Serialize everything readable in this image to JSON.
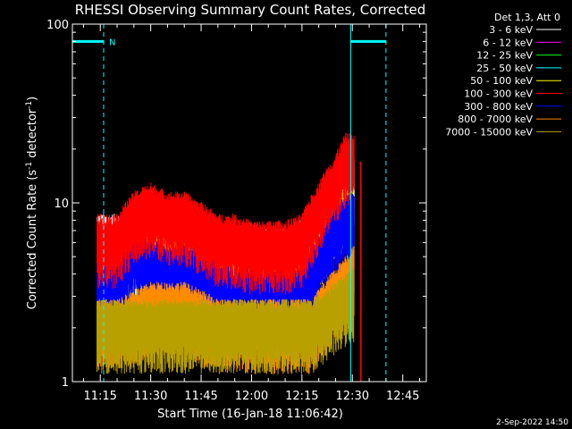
{
  "chart_data": {
    "type": "line",
    "title": "RHESSI Observing Summary Count Rates, Corrected",
    "xlabel": "Start Time (16-Jan-18 11:06:42)",
    "ylabel_main": "Corrected Count Rate (s",
    "ylabel_sup1": "-1",
    "ylabel_mid": " detector",
    "ylabel_sup2": "-1",
    "ylabel_end": ")",
    "y_scale": "log",
    "ylim": [
      1,
      100
    ],
    "xlim_minutes": [
      666.7,
      772
    ],
    "x_ticks": [
      {
        "label": "11:15",
        "m": 675
      },
      {
        "label": "11:30",
        "m": 690
      },
      {
        "label": "11:45",
        "m": 705
      },
      {
        "label": "12:00",
        "m": 720
      },
      {
        "label": "12:15",
        "m": 735
      },
      {
        "label": "12:30",
        "m": 750
      },
      {
        "label": "12:45",
        "m": 765
      }
    ],
    "y_ticks": [
      {
        "label": "1",
        "v": 1
      },
      {
        "label": "10",
        "v": 10
      },
      {
        "label": "100",
        "v": 100
      }
    ],
    "legend_header": "Det 1,3, Att 0",
    "series": [
      {
        "name": "3 - 6 keV",
        "color": "#ffffff",
        "x": [
          674,
          680,
          690,
          700,
          710,
          720,
          730,
          738,
          745,
          748,
          750.5
        ],
        "y": [
          6,
          6,
          6,
          5,
          5,
          5,
          5,
          6,
          9,
          12,
          12
        ]
      },
      {
        "name": "6 - 12 keV",
        "color": "#ff00ff",
        "x": [
          674,
          680,
          690,
          700,
          710,
          720,
          730,
          738,
          745,
          748,
          750.5
        ],
        "y": [
          4,
          4,
          5,
          4,
          4,
          3.5,
          4,
          5,
          8,
          11,
          11
        ]
      },
      {
        "name": "12 - 25 keV",
        "color": "#00ff00",
        "x": [
          674,
          680,
          690,
          700,
          710,
          720,
          730,
          738,
          745,
          748,
          750.5
        ],
        "y": [
          4,
          4,
          5.5,
          4.5,
          4,
          3.5,
          4,
          5,
          9,
          13,
          12
        ]
      },
      {
        "name": "25 - 50 keV",
        "color": "#00ffff",
        "x": [
          674,
          680,
          690,
          700,
          710,
          720,
          730,
          738,
          745,
          748,
          750.5
        ],
        "y": [
          4,
          4,
          5,
          4,
          4,
          3.5,
          4,
          5,
          10,
          14,
          13
        ]
      },
      {
        "name": "50 - 100 keV",
        "color": "#ffff00",
        "x": [
          674,
          680,
          690,
          700,
          710,
          720,
          730,
          738,
          745,
          748,
          750.5
        ],
        "y": [
          4,
          4,
          5,
          4,
          4,
          3.5,
          4,
          5,
          8,
          10,
          10
        ]
      },
      {
        "name": "100 - 300 keV",
        "color": "#ff0000",
        "x": [
          674,
          680,
          685,
          690,
          695,
          700,
          705,
          710,
          715,
          720,
          725,
          730,
          735,
          740,
          745,
          748,
          750.5
        ],
        "y": [
          6,
          6,
          8,
          9,
          8,
          8,
          7,
          6,
          6,
          5.5,
          5.5,
          5.5,
          6,
          9,
          13,
          17,
          17
        ]
      },
      {
        "name": "300 - 800 keV",
        "color": "#0000ff",
        "x": [
          674,
          678,
          682,
          684,
          690,
          695,
          700,
          705,
          710,
          715,
          720,
          725,
          730,
          735,
          740,
          745,
          750.5
        ],
        "y": [
          3.5,
          3.5,
          4,
          5,
          4.5,
          4,
          4,
          3.8,
          3.2,
          3,
          3,
          3,
          3,
          3,
          4.5,
          7,
          8
        ]
      },
      {
        "name": "800 - 7000 keV",
        "color": "#ff8c00",
        "x": [
          674,
          680,
          690,
          700,
          710,
          720,
          730,
          738,
          745,
          750.5
        ],
        "y": [
          2,
          2,
          2.5,
          2.5,
          2,
          2,
          2,
          2,
          3,
          4
        ]
      },
      {
        "name": "7000 - 15000 keV",
        "color": "#b8a000",
        "x": [
          674,
          680,
          690,
          700,
          710,
          720,
          730,
          738,
          745,
          750.5
        ],
        "y": [
          2,
          2,
          2,
          2,
          2,
          2,
          2,
          2,
          2.5,
          3
        ]
      }
    ],
    "night_marker": "N",
    "annotations": {
      "night_bars": [
        {
          "x_from": 666.7,
          "x_to": 676,
          "y": 80
        },
        {
          "x_from": 749.5,
          "x_to": 760,
          "y": 80
        }
      ],
      "solid_vlines": [
        666.7,
        749.5
      ],
      "dashed_vlines": [
        676,
        760
      ],
      "red_vline": 752.5
    },
    "footer_date": "2-Sep-2022 14:50",
    "grid": false,
    "legend_position": "top-right"
  }
}
